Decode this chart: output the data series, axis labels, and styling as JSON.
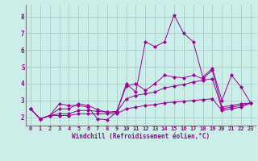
{
  "xlabel": "Windchill (Refroidissement éolien,°C)",
  "background_color": "#cceee8",
  "grid_color": "#aacccc",
  "line_color": "#990099",
  "xlim": [
    -0.5,
    23.5
  ],
  "ylim": [
    1.5,
    8.7
  ],
  "yticks": [
    2,
    3,
    4,
    5,
    6,
    7,
    8
  ],
  "xticks": [
    0,
    1,
    2,
    3,
    4,
    5,
    6,
    7,
    8,
    9,
    10,
    11,
    12,
    13,
    14,
    15,
    16,
    17,
    18,
    19,
    20,
    21,
    22,
    23
  ],
  "series": [
    [
      2.5,
      1.9,
      2.1,
      2.8,
      2.7,
      2.7,
      2.6,
      1.9,
      1.85,
      2.3,
      4.0,
      3.5,
      6.5,
      6.2,
      6.5,
      8.1,
      7.0,
      6.5,
      4.4,
      4.9,
      3.0,
      4.5,
      3.8,
      2.85
    ],
    [
      2.5,
      1.9,
      2.1,
      2.5,
      2.5,
      2.8,
      2.7,
      2.45,
      2.3,
      2.35,
      3.85,
      4.0,
      3.6,
      4.0,
      4.5,
      4.4,
      4.35,
      4.5,
      4.3,
      4.8,
      2.6,
      2.7,
      2.8,
      2.85
    ],
    [
      2.5,
      1.9,
      2.1,
      2.2,
      2.2,
      2.4,
      2.4,
      2.35,
      2.3,
      2.3,
      3.1,
      3.3,
      3.4,
      3.5,
      3.75,
      3.85,
      3.95,
      4.1,
      4.2,
      4.3,
      2.5,
      2.6,
      2.7,
      2.85
    ],
    [
      2.5,
      1.9,
      2.1,
      2.1,
      2.1,
      2.2,
      2.2,
      2.2,
      2.2,
      2.2,
      2.5,
      2.6,
      2.7,
      2.75,
      2.85,
      2.9,
      2.95,
      3.0,
      3.05,
      3.1,
      2.4,
      2.5,
      2.6,
      2.85
    ]
  ]
}
